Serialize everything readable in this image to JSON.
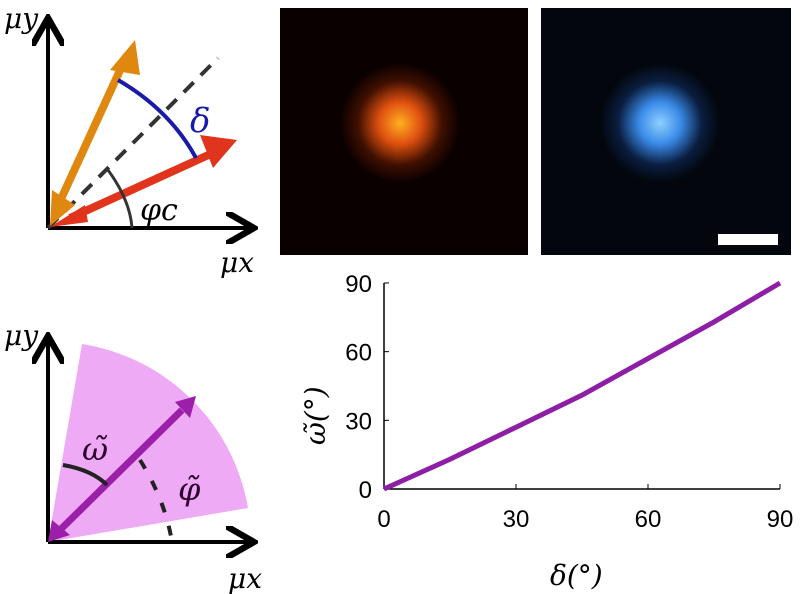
{
  "diagram_top": {
    "y_axis_label": "μy",
    "x_axis_label": "μx",
    "delta_label": "δ",
    "phi_label": "φc",
    "colors": {
      "arrow1": "#e0870f",
      "arrow2": "#e0341c",
      "arc": "#1a1aa8"
    }
  },
  "diagram_bottom": {
    "y_axis_label": "μy",
    "x_axis_label": "μx",
    "omega_label": "ω̃",
    "phi_label": "φ̃",
    "colors": {
      "cone": "#eeaaf5",
      "arrow": "#9b1fa8"
    }
  },
  "images": {
    "left_color": "#ff7a1a",
    "right_color": "#4aa0ff",
    "scale_bar": "white"
  },
  "chart_data": {
    "type": "line",
    "xlabel": "δ(°)",
    "ylabel": "ω̃(°)",
    "xlim": [
      0,
      90
    ],
    "ylim": [
      0,
      90
    ],
    "xticks": [
      "0",
      "30",
      "60",
      "90"
    ],
    "yticks": [
      "0",
      "30",
      "60",
      "90"
    ],
    "series": [
      {
        "name": "omega",
        "color": "#8e1ea6",
        "x": [
          0,
          15,
          30,
          45,
          60,
          75,
          90
        ],
        "y": [
          0,
          13,
          27,
          41,
          57,
          73,
          90
        ]
      }
    ],
    "grid": false
  }
}
